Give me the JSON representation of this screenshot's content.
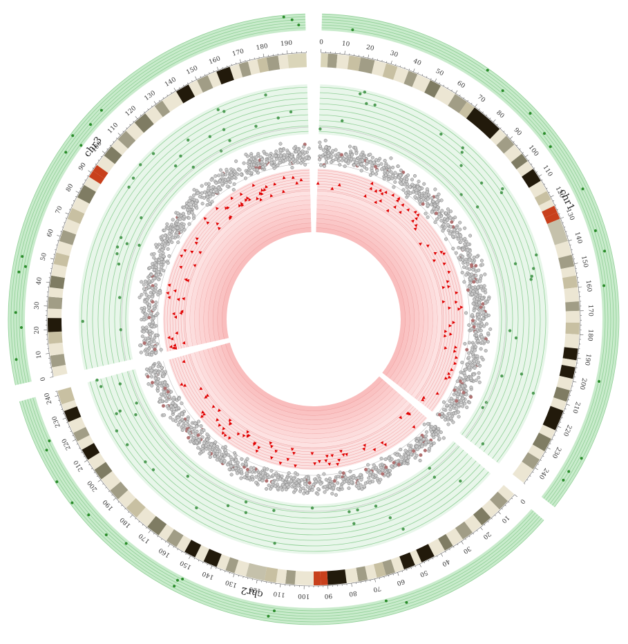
{
  "chromosomes": [
    {
      "id": "chr1",
      "label": "chr1",
      "length": 248,
      "ticks": [
        "0",
        "10",
        "20",
        "30",
        "40",
        "50",
        "60",
        "70",
        "80",
        "90",
        "100",
        "110",
        "120",
        "130",
        "140",
        "150",
        "160",
        "170",
        "180",
        "190",
        "200",
        "210",
        "220",
        "230",
        "240"
      ]
    },
    {
      "id": "chr2",
      "label": "chr2",
      "length": 242,
      "ticks": [
        "0",
        "10",
        "20",
        "30",
        "40",
        "50",
        "60",
        "70",
        "80",
        "90",
        "100",
        "110",
        "120",
        "130",
        "140",
        "150",
        "160",
        "170",
        "180",
        "190",
        "200",
        "210",
        "220",
        "230",
        "240"
      ]
    },
    {
      "id": "chr3",
      "label": "chr3",
      "length": 198,
      "ticks": [
        "0",
        "10",
        "20",
        "30",
        "40",
        "50",
        "60",
        "70",
        "80",
        "90",
        "100",
        "110",
        "120",
        "130",
        "140",
        "150",
        "160",
        "170",
        "180",
        "190"
      ]
    }
  ],
  "cytobands": {
    "chr1": [
      [
        0,
        3,
        "gl"
      ],
      [
        3,
        7,
        "g2"
      ],
      [
        7,
        12,
        "w"
      ],
      [
        12,
        17,
        "g1"
      ],
      [
        17,
        23,
        "g2"
      ],
      [
        23,
        28,
        "w"
      ],
      [
        28,
        33,
        "g1"
      ],
      [
        33,
        38,
        "w"
      ],
      [
        38,
        42,
        "g2"
      ],
      [
        42,
        48,
        "w"
      ],
      [
        48,
        53,
        "g3"
      ],
      [
        53,
        60,
        "w"
      ],
      [
        60,
        66,
        "g2"
      ],
      [
        66,
        70,
        "g1"
      ],
      [
        70,
        84,
        "g4"
      ],
      [
        84,
        88,
        "w"
      ],
      [
        88,
        93,
        "g2"
      ],
      [
        93,
        98,
        "w"
      ],
      [
        98,
        102,
        "g3"
      ],
      [
        102,
        106,
        "w"
      ],
      [
        106,
        112,
        "g4"
      ],
      [
        112,
        117,
        "w"
      ],
      [
        117,
        121,
        "g1"
      ],
      [
        121,
        124,
        "w"
      ],
      [
        124,
        127,
        "acen"
      ],
      [
        127,
        130,
        "acen"
      ],
      [
        130,
        140,
        "gv"
      ],
      [
        140,
        146,
        "w"
      ],
      [
        146,
        151,
        "g2"
      ],
      [
        151,
        155,
        "w"
      ],
      [
        155,
        160,
        "g1"
      ],
      [
        160,
        166,
        "w"
      ],
      [
        166,
        170,
        "g2"
      ],
      [
        170,
        175,
        "w"
      ],
      [
        175,
        180,
        "g1"
      ],
      [
        180,
        186,
        "w"
      ],
      [
        186,
        191,
        "g4"
      ],
      [
        191,
        194,
        "w"
      ],
      [
        194,
        199,
        "g4"
      ],
      [
        199,
        204,
        "w"
      ],
      [
        204,
        209,
        "g3"
      ],
      [
        209,
        213,
        "w"
      ],
      [
        213,
        222,
        "g4"
      ],
      [
        222,
        226,
        "w"
      ],
      [
        226,
        232,
        "g3"
      ],
      [
        232,
        236,
        "w"
      ],
      [
        236,
        241,
        "g2"
      ],
      [
        241,
        248,
        "w"
      ]
    ],
    "chr2": [
      [
        0,
        4,
        "w"
      ],
      [
        4,
        9,
        "g2"
      ],
      [
        9,
        14,
        "w"
      ],
      [
        14,
        19,
        "g3"
      ],
      [
        19,
        24,
        "w"
      ],
      [
        24,
        29,
        "g2"
      ],
      [
        29,
        34,
        "w"
      ],
      [
        34,
        38,
        "g3"
      ],
      [
        38,
        43,
        "w"
      ],
      [
        43,
        49,
        "g4"
      ],
      [
        49,
        52,
        "w"
      ],
      [
        52,
        57,
        "g4"
      ],
      [
        57,
        61,
        "w"
      ],
      [
        61,
        65,
        "g2"
      ],
      [
        65,
        69,
        "g1"
      ],
      [
        69,
        73,
        "w"
      ],
      [
        73,
        77,
        "g2"
      ],
      [
        77,
        82,
        "w"
      ],
      [
        82,
        90,
        "g4"
      ],
      [
        90,
        93,
        "acen"
      ],
      [
        93,
        96,
        "acen"
      ],
      [
        96,
        104,
        "w"
      ],
      [
        104,
        108,
        "g2"
      ],
      [
        108,
        112,
        "w"
      ],
      [
        112,
        117,
        "g1"
      ],
      [
        117,
        125,
        "gv"
      ],
      [
        125,
        130,
        "w"
      ],
      [
        130,
        134,
        "g2"
      ],
      [
        134,
        138,
        "w"
      ],
      [
        138,
        144,
        "g4"
      ],
      [
        144,
        148,
        "w"
      ],
      [
        148,
        153,
        "g4"
      ],
      [
        153,
        157,
        "w"
      ],
      [
        157,
        162,
        "g2"
      ],
      [
        162,
        166,
        "w"
      ],
      [
        166,
        172,
        "g3"
      ],
      [
        172,
        178,
        "w"
      ],
      [
        178,
        184,
        "g1"
      ],
      [
        184,
        189,
        "w"
      ],
      [
        189,
        194,
        "g2"
      ],
      [
        194,
        200,
        "w"
      ],
      [
        200,
        205,
        "g3"
      ],
      [
        205,
        210,
        "w"
      ],
      [
        210,
        215,
        "g4"
      ],
      [
        215,
        219,
        "w"
      ],
      [
        219,
        223,
        "g2"
      ],
      [
        223,
        228,
        "w"
      ],
      [
        228,
        233,
        "g4"
      ],
      [
        233,
        236,
        "w"
      ],
      [
        236,
        242,
        "g1"
      ]
    ],
    "chr3": [
      [
        0,
        4,
        "w"
      ],
      [
        4,
        9,
        "g2"
      ],
      [
        9,
        14,
        "w"
      ],
      [
        14,
        19,
        "g1"
      ],
      [
        19,
        25,
        "g4"
      ],
      [
        25,
        29,
        "w"
      ],
      [
        29,
        34,
        "g2"
      ],
      [
        34,
        38,
        "w"
      ],
      [
        38,
        43,
        "g3"
      ],
      [
        43,
        48,
        "w"
      ],
      [
        48,
        53,
        "g1"
      ],
      [
        53,
        58,
        "w"
      ],
      [
        58,
        63,
        "g2"
      ],
      [
        63,
        68,
        "w"
      ],
      [
        68,
        73,
        "g1"
      ],
      [
        73,
        78,
        "w"
      ],
      [
        78,
        84,
        "g3"
      ],
      [
        84,
        88,
        "w"
      ],
      [
        88,
        91,
        "acen"
      ],
      [
        91,
        94,
        "acen"
      ],
      [
        94,
        99,
        "w"
      ],
      [
        99,
        104,
        "g3"
      ],
      [
        104,
        108,
        "w"
      ],
      [
        108,
        113,
        "g2"
      ],
      [
        113,
        118,
        "w"
      ],
      [
        118,
        124,
        "g3"
      ],
      [
        124,
        129,
        "w"
      ],
      [
        129,
        133,
        "g2"
      ],
      [
        133,
        140,
        "w"
      ],
      [
        140,
        146,
        "g4"
      ],
      [
        146,
        150,
        "w"
      ],
      [
        150,
        155,
        "g2"
      ],
      [
        155,
        159,
        "w"
      ],
      [
        159,
        165,
        "g4"
      ],
      [
        165,
        169,
        "w"
      ],
      [
        169,
        173,
        "g2"
      ],
      [
        173,
        177,
        "w"
      ],
      [
        177,
        181,
        "g1"
      ],
      [
        181,
        186,
        "g2"
      ],
      [
        186,
        190,
        "w"
      ],
      [
        190,
        198,
        "gl"
      ]
    ]
  },
  "band_colors": {
    "w": "#ece6d3",
    "gl": "#dad5b9",
    "g1": "#c8c0a2",
    "g2": "#a19d86",
    "g3": "#7f7c63",
    "g4": "#221a0b",
    "gv": "#c5c1ab",
    "acen": "#c8401c"
  },
  "track_colors": {
    "outer_bg": "#c9ebcc",
    "outer_line": "#8fcf95",
    "outer_point": "#2a8c2a",
    "inner_bg": "#e8f6ea",
    "inner_line": "#8fcf95",
    "inner_point": "#4f9c55",
    "scatter_fill": "#c8c8c8",
    "scatter_stroke": "#7a7a7a",
    "scatter_highlight": "#b07070",
    "heat_bg": "#fbe2e2",
    "heat_line": "#f07a7a",
    "triangle": "#e00000",
    "core_light": "#fde6e6",
    "core_dark": "#f8a8a8",
    "core_line": "#e07070"
  }
}
